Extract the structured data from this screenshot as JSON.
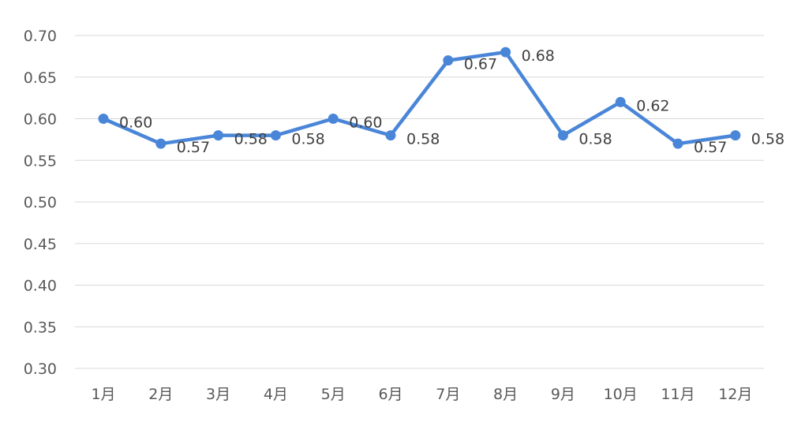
{
  "chart_data": {
    "type": "line",
    "title": "",
    "xlabel": "",
    "ylabel": "",
    "categories": [
      "1月",
      "2月",
      "3月",
      "4月",
      "5月",
      "6月",
      "7月",
      "8月",
      "9月",
      "10月",
      "11月",
      "12月"
    ],
    "series": [
      {
        "values": [
          0.6,
          0.57,
          0.58,
          0.58,
          0.6,
          0.58,
          0.67,
          0.68,
          0.58,
          0.62,
          0.57,
          0.58
        ],
        "labels": [
          "0.60",
          "0.57",
          "0.58",
          "0.58",
          "0.60",
          "0.58",
          "0.67",
          "0.68",
          "0.58",
          "0.62",
          "0.57",
          "0.58"
        ],
        "color": "#4a86d8"
      }
    ],
    "ylim": [
      0.3,
      0.7
    ],
    "yticks": [
      "0.30",
      "0.35",
      "0.40",
      "0.45",
      "0.50",
      "0.55",
      "0.60",
      "0.65",
      "0.70"
    ],
    "grid": true,
    "legend": "none",
    "gridline_color": "#d9d9d9"
  }
}
